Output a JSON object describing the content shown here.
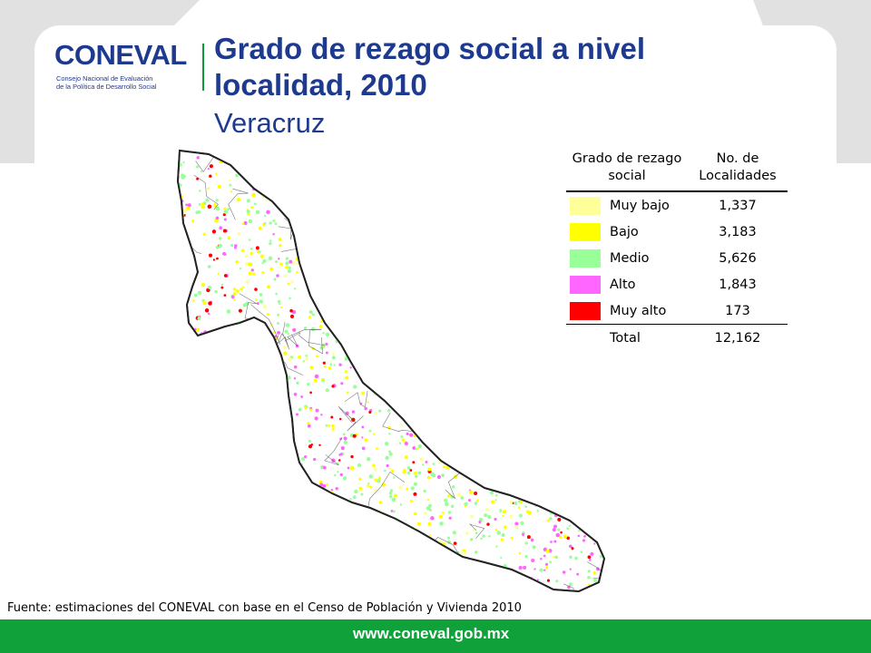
{
  "logo": {
    "word": "CONEVAL",
    "subtitle_line1": "Consejo Nacional de Evaluación",
    "subtitle_line2": "de la Política de Desarrollo Social"
  },
  "title": "Grado de rezago social a nivel localidad, 2010",
  "subtitle": "Veracruz",
  "legend": {
    "header_grado": "Grado de rezago social",
    "header_count": "No. de Localidades",
    "rows": [
      {
        "label": "Muy bajo",
        "count": "1,337",
        "color": "#ffff99"
      },
      {
        "label": "Bajo",
        "count": "3,183",
        "color": "#ffff00"
      },
      {
        "label": "Medio",
        "count": "5,626",
        "color": "#99ff99"
      },
      {
        "label": "Alto",
        "count": "1,843",
        "color": "#ff66ff"
      },
      {
        "label": "Muy alto",
        "count": "173",
        "color": "#ff0000"
      }
    ],
    "total_label": "Total",
    "total_count": "12,162"
  },
  "source": "Fuente: estimaciones del CONEVAL con base en el Censo de Población y Vivienda 2010",
  "footer": {
    "url": "www.coneval.gob.mx",
    "color": "#10a13a"
  },
  "colors": {
    "title": "#1e3a8f",
    "accent": "#0f9b3c",
    "frame_grey": "#dcdcdc"
  }
}
